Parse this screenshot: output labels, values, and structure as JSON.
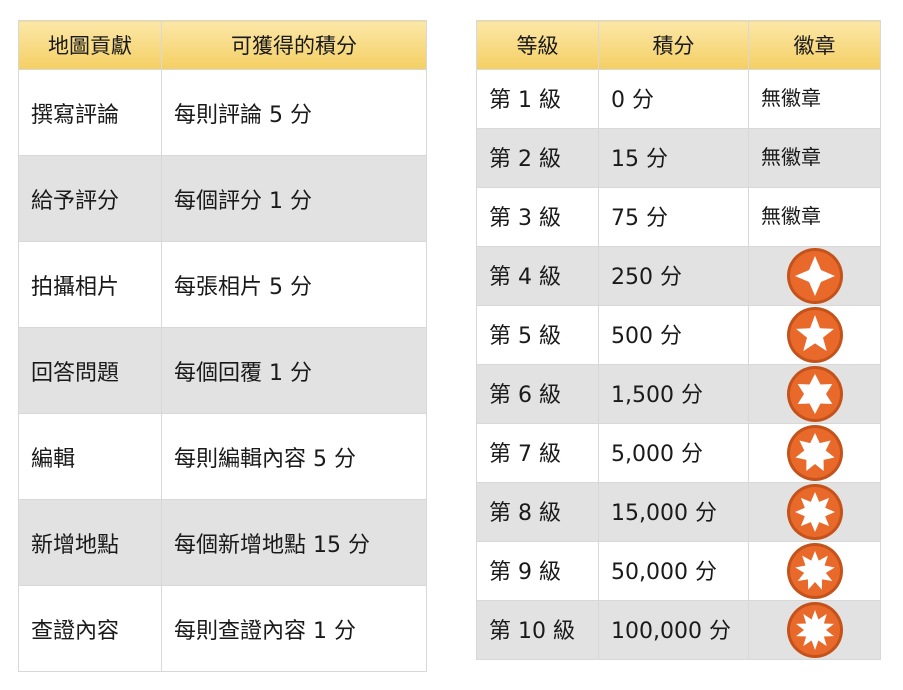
{
  "contributions": {
    "headers": [
      "地圖貢獻",
      "可獲得的積分"
    ],
    "rows": [
      {
        "type": "撰寫評論",
        "points": "每則評論 5 分"
      },
      {
        "type": "給予評分",
        "points": "每個評分 1 分"
      },
      {
        "type": "拍攝相片",
        "points": "每張相片 5 分"
      },
      {
        "type": "回答問題",
        "points": "每個回覆 1 分"
      },
      {
        "type": "編輯",
        "points": "每則編輯內容 5 分"
      },
      {
        "type": "新增地點",
        "points": "每個新增地點 15 分"
      },
      {
        "type": "查證內容",
        "points": "每則查證內容 1 分"
      }
    ]
  },
  "levels": {
    "headers": [
      "等級",
      "積分",
      "徽章"
    ],
    "rows": [
      {
        "level": "第 1 級",
        "points": "0 分",
        "badge": "無徽章"
      },
      {
        "level": "第 2 級",
        "points": "15 分",
        "badge": "無徽章"
      },
      {
        "level": "第 3 級",
        "points": "75 分",
        "badge": "無徽章"
      },
      {
        "level": "第 4 級",
        "points": "250 分",
        "badge_icon": "star-4-point-badge-icon",
        "star_points": 4
      },
      {
        "level": "第 5 級",
        "points": "500 分",
        "badge_icon": "star-5-point-badge-icon",
        "star_points": 5
      },
      {
        "level": "第 6 級",
        "points": "1,500 分",
        "badge_icon": "star-6-point-badge-icon",
        "star_points": 6
      },
      {
        "level": "第 7 級",
        "points": "5,000 分",
        "badge_icon": "star-7-point-badge-icon",
        "star_points": 7
      },
      {
        "level": "第 8 級",
        "points": "15,000 分",
        "badge_icon": "star-8-point-badge-icon",
        "star_points": 8
      },
      {
        "level": "第 9 級",
        "points": "50,000 分",
        "badge_icon": "star-9-point-badge-icon",
        "star_points": 9
      },
      {
        "level": "第 10 級",
        "points": "100,000 分",
        "badge_icon": "star-10-point-badge-icon",
        "star_points": 10
      }
    ]
  },
  "colors": {
    "header_gradient_top": "#fbe7a8",
    "header_gradient_bottom": "#f4cf63",
    "badge_orange": "#e8692a",
    "badge_ring": "#c4521b",
    "alt_row": "#e2e2e2"
  }
}
